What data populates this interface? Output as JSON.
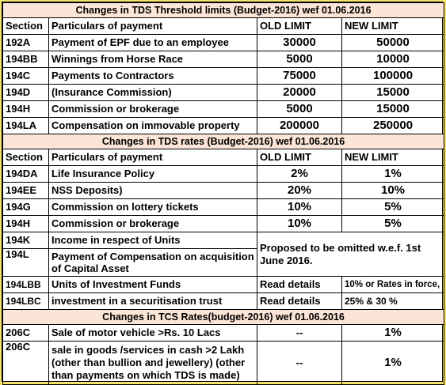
{
  "section1": {
    "title": "Changes in TDS Threshold limits (Budget-2016) wef 01.06.2016",
    "headers": [
      "Section",
      "Particulars of payment",
      "OLD LIMIT",
      "NEW LIMIT"
    ],
    "rows": [
      {
        "section": "192A",
        "particulars": "Payment of EPF due to an employee",
        "old": "30000",
        "new": "50000"
      },
      {
        "section": "194BB",
        "particulars": "Winnings from Horse Race",
        "old": "5000",
        "new": "10000"
      },
      {
        "section": "194C",
        "particulars": "Payments to Contractors",
        "old": "75000",
        "new": "100000"
      },
      {
        "section": "194D",
        "particulars": "(Insurance Commission)",
        "old": "20000",
        "new": "15000"
      },
      {
        "section": "194H",
        "particulars": "Commission or brokerage",
        "old": "5000",
        "new": "15000"
      },
      {
        "section": "194LA",
        "particulars": "Compensation on immovable property",
        "old": "200000",
        "new": "250000"
      }
    ]
  },
  "section2": {
    "title": "Changes in TDS rates (Budget-2016) wef 01.06.2016",
    "headers": [
      "Section",
      "Particulars of payment",
      "OLD LIMIT",
      "NEW LIMIT"
    ],
    "rows": [
      {
        "section": "194DA",
        "particulars": "Life Insurance Policy",
        "old": "2%",
        "new": "1%"
      },
      {
        "section": "194EE",
        "particulars": "NSS Deposits)",
        "old": "20%",
        "new": "10%"
      },
      {
        "section": "194G",
        "particulars": "Commission on lottery tickets",
        "old": "10%",
        "new": "5%"
      },
      {
        "section": "194H",
        "particulars": "Commission or brokerage",
        "old": "10%",
        "new": "5%"
      }
    ],
    "omitted": {
      "note": "Proposed to be omitted w.e.f. 1st June 2016.",
      "rows": [
        {
          "section": "194K",
          "particulars": "Income in respect of Units"
        },
        {
          "section": "194L",
          "particulars": "Payment of Compensation on acquisition of Capital Asset"
        }
      ]
    },
    "extra_rows": [
      {
        "section": "194LBB",
        "particulars": "Units of Investment Funds",
        "old": "Read details",
        "new": "10% or Rates in force,"
      },
      {
        "section": "194LBC",
        "particulars": "investment in a securitisation trust",
        "old": "Read details",
        "new": "25% & 30 %"
      }
    ]
  },
  "section3": {
    "title": "Changes in TCS Rates(budget-2016) wef  01.06.2016",
    "rows": [
      {
        "section": "206C",
        "particulars": "Sale of motor vehicle >Rs. 10 Lacs",
        "old": "--",
        "new": "1%"
      },
      {
        "section": "206C",
        "particulars": "sale in goods /services in cash >2 Lakh (other than bullion and jewellery) (other than payments on which TDS is made)",
        "old": "--",
        "new": "1%"
      }
    ]
  }
}
